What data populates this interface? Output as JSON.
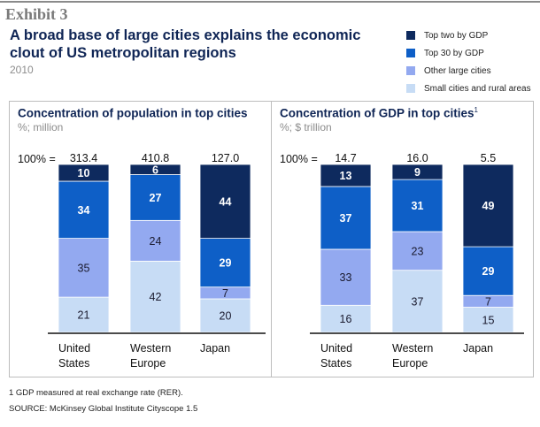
{
  "exhibit_label": "Exhibit 3",
  "title": "A broad base of large cities explains the economic clout of US metropolitan regions",
  "subtitle": "2010",
  "legend": [
    {
      "label": "Top two by GDP",
      "color": "#0e2a5e"
    },
    {
      "label": "Top 30 by GDP",
      "color": "#0e5fc7"
    },
    {
      "label": "Other large cities",
      "color": "#93a9f0"
    },
    {
      "label": "Small cities and rural areas",
      "color": "#c7dcf5"
    }
  ],
  "footnotes": {
    "note1": "1  GDP measured at real exchange rate (RER).",
    "source": "SOURCE: McKinsey Global Institute Cityscope 1.5"
  },
  "chart_data": [
    {
      "type": "bar",
      "stacked": true,
      "title": "Concentration of population in top cities",
      "title_superscript": "",
      "units": "%; million",
      "total_prefix": "100% =",
      "categories": [
        "United States",
        "Western Europe",
        "Japan"
      ],
      "category_lines": [
        [
          "United",
          "States"
        ],
        [
          "Western",
          "Europe"
        ],
        [
          "Japan"
        ]
      ],
      "totals": [
        "313.4",
        "410.8",
        "127.0"
      ],
      "series": [
        {
          "name": "Small cities and rural areas",
          "values": [
            21,
            42,
            20
          ],
          "color": "#c7dcf5",
          "label_color": "#1a1a2e"
        },
        {
          "name": "Other large cities",
          "values": [
            35,
            24,
            7
          ],
          "color": "#93a9f0",
          "label_color": "#1a1a2e"
        },
        {
          "name": "Top 30 by GDP",
          "values": [
            34,
            27,
            29
          ],
          "color": "#0e5fc7",
          "label_color": "#ffffff"
        },
        {
          "name": "Top two by GDP",
          "values": [
            10,
            6,
            44
          ],
          "color": "#0e2a5e",
          "label_color": "#ffffff"
        }
      ],
      "ylim": [
        0,
        100
      ]
    },
    {
      "type": "bar",
      "stacked": true,
      "title": "Concentration of GDP in top cities",
      "title_superscript": "1",
      "units": "%; $ trillion",
      "total_prefix": "100% =",
      "categories": [
        "United States",
        "Western Europe",
        "Japan"
      ],
      "category_lines": [
        [
          "United",
          "States"
        ],
        [
          "Western",
          "Europe"
        ],
        [
          "Japan"
        ]
      ],
      "totals": [
        "14.7",
        "16.0",
        "5.5"
      ],
      "series": [
        {
          "name": "Small cities and rural areas",
          "values": [
            16,
            37,
            15
          ],
          "color": "#c7dcf5",
          "label_color": "#1a1a2e"
        },
        {
          "name": "Other large cities",
          "values": [
            33,
            23,
            7
          ],
          "color": "#93a9f0",
          "label_color": "#1a1a2e"
        },
        {
          "name": "Top 30 by GDP",
          "values": [
            37,
            31,
            29
          ],
          "color": "#0e5fc7",
          "label_color": "#ffffff"
        },
        {
          "name": "Top two by GDP",
          "values": [
            13,
            9,
            49
          ],
          "color": "#0e2a5e",
          "label_color": "#ffffff"
        }
      ],
      "ylim": [
        0,
        100
      ]
    }
  ]
}
